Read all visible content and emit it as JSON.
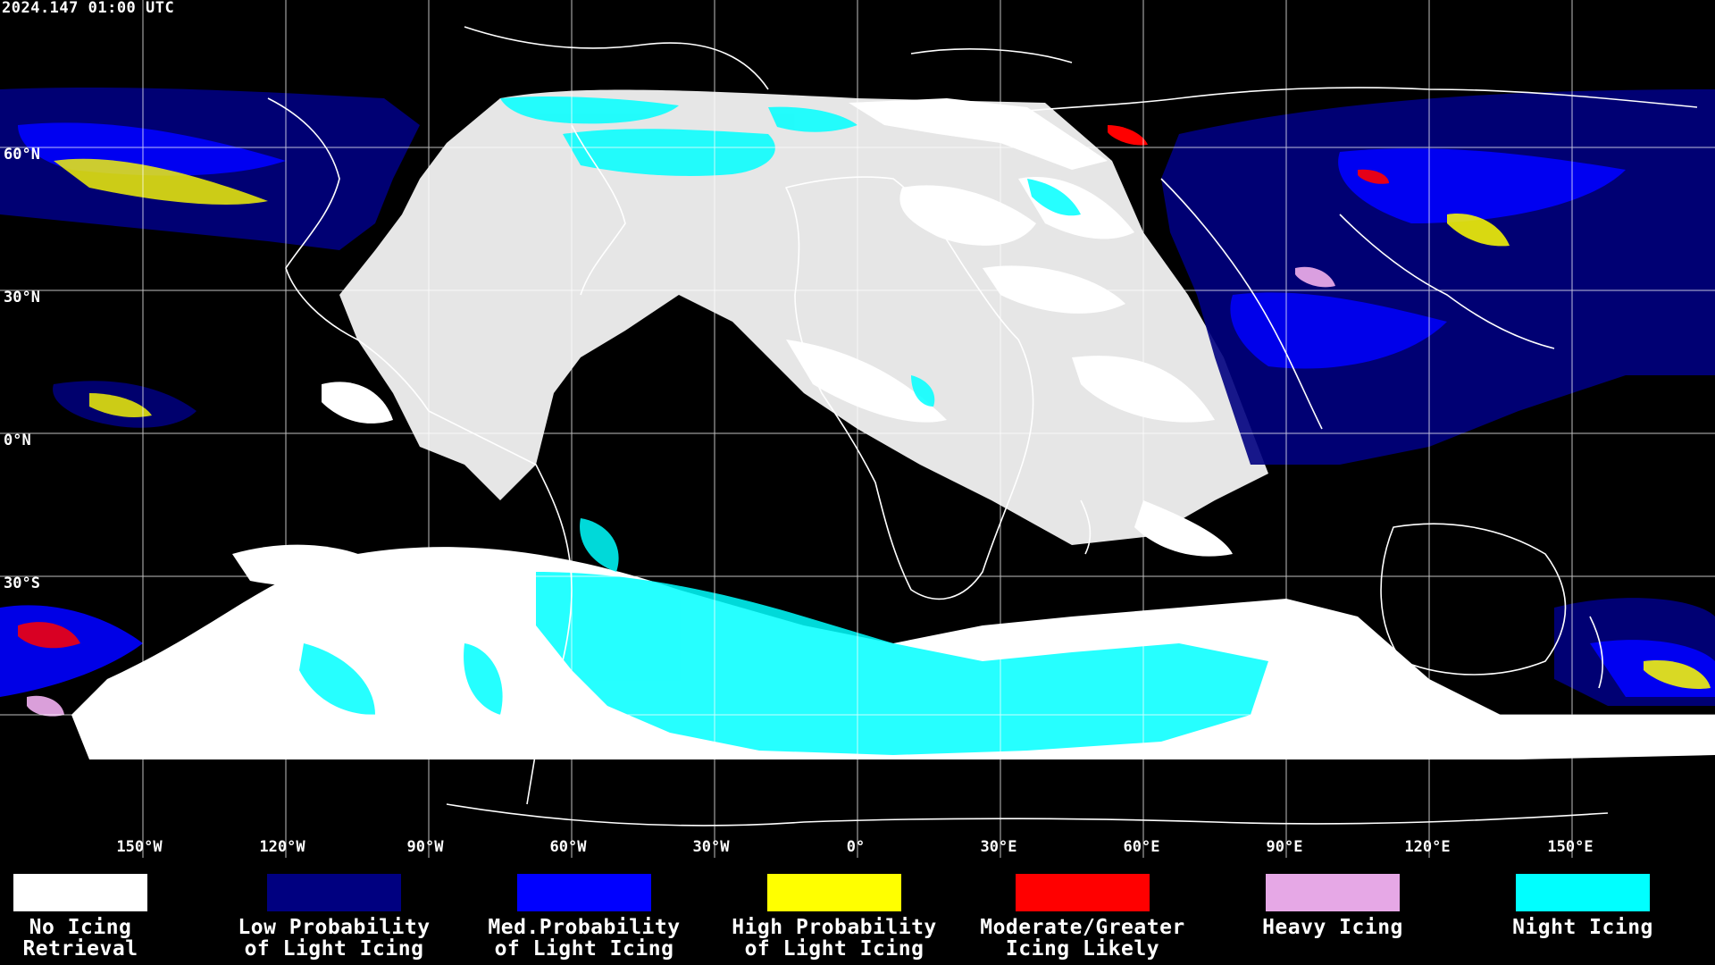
{
  "timestamp": "2024.147 01:00 UTC",
  "lat_labels": [
    "60°N",
    "30°N",
    "0°N",
    "30°S"
  ],
  "lon_labels": [
    "150°W",
    "120°W",
    "90°W",
    "60°W",
    "30°W",
    "0°",
    "30°E",
    "60°E",
    "90°E",
    "120°E",
    "150°E"
  ],
  "legend": [
    {
      "label_line1": "No Icing",
      "label_line2": "Retrieval",
      "color": "#ffffff"
    },
    {
      "label_line1": "Low Probability",
      "label_line2": "of Light Icing",
      "color": "#000080"
    },
    {
      "label_line1": "Med.Probability",
      "label_line2": "of Light Icing",
      "color": "#0000ff"
    },
    {
      "label_line1": "High Probability",
      "label_line2": "of Light Icing",
      "color": "#ffff00"
    },
    {
      "label_line1": "Moderate/Greater",
      "label_line2": "Icing Likely",
      "color": "#ff0000"
    },
    {
      "label_line1": "Heavy Icing",
      "label_line2": "",
      "color": "#e6a8e6"
    },
    {
      "label_line1": "Night Icing",
      "label_line2": "",
      "color": "#00ffff"
    }
  ]
}
